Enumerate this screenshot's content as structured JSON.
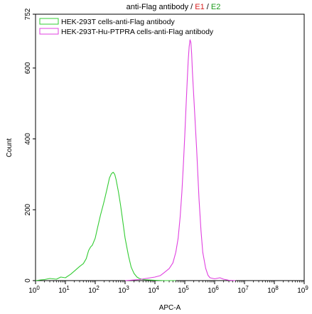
{
  "title": {
    "prefix": "anti-Flag antibody",
    "sep1": " / ",
    "e1": "E1",
    "sep2": " / ",
    "e2": "E2",
    "e1_color": "#d81e1e",
    "e2_color": "#1a9a1a"
  },
  "chart_data": {
    "type": "line",
    "xlabel": "APC-A",
    "ylabel": "Count",
    "x_scale": "log",
    "xlim": [
      1,
      1000000000
    ],
    "ylim": [
      0,
      752
    ],
    "yticks": [
      0,
      200,
      400,
      600,
      752
    ],
    "xticks": [
      {
        "value": 1,
        "base": "10",
        "exp": "0"
      },
      {
        "value": 10,
        "base": "10",
        "exp": "1"
      },
      {
        "value": 100,
        "base": "10",
        "exp": "2"
      },
      {
        "value": 1000,
        "base": "10",
        "exp": "3"
      },
      {
        "value": 10000,
        "base": "10",
        "exp": "4"
      },
      {
        "value": 100000,
        "base": "10",
        "exp": "5"
      },
      {
        "value": 1000000,
        "base": "10",
        "exp": "6"
      },
      {
        "value": 10000000,
        "base": "10",
        "exp": "7"
      },
      {
        "value": 100000000,
        "base": "10",
        "exp": "8"
      },
      {
        "value": 1000000000,
        "base": "10",
        "exp": "9"
      }
    ],
    "legend_position": "top-left",
    "series": [
      {
        "name": "HEK-293T cells-anti-Flag antibody",
        "color": "#33cc33",
        "x": [
          1,
          1.5,
          2,
          3,
          5,
          7,
          10,
          15,
          20,
          30,
          40,
          50,
          60,
          70,
          80,
          100,
          120,
          150,
          180,
          200,
          250,
          300,
          350,
          400,
          450,
          500,
          600,
          700,
          800,
          1000,
          1300,
          1600,
          2000,
          2500,
          3000,
          4000,
          6000,
          10000,
          20000,
          50000
        ],
        "y": [
          0,
          2,
          3,
          6,
          4,
          10,
          8,
          18,
          27,
          40,
          48,
          62,
          85,
          95,
          100,
          120,
          150,
          185,
          210,
          225,
          260,
          290,
          302,
          306,
          300,
          285,
          250,
          215,
          180,
          120,
          70,
          38,
          20,
          10,
          6,
          3,
          2,
          1,
          0,
          0
        ]
      },
      {
        "name": "HEK-293T-Hu-PTPRA cells-anti-Flag antibody",
        "color": "#e040e0",
        "x": [
          1000,
          3000,
          5000,
          10000,
          15000,
          20000,
          30000,
          40000,
          50000,
          60000,
          70000,
          80000,
          90000,
          100000,
          110000,
          120000,
          130000,
          140000,
          150000,
          160000,
          170000,
          180000,
          200000,
          250000,
          300000,
          350000,
          400000,
          500000,
          600000,
          700000,
          1000000,
          1500000,
          2000000,
          3000000,
          5000000
        ],
        "y": [
          0,
          3,
          6,
          10,
          14,
          22,
          34,
          50,
          80,
          120,
          180,
          250,
          330,
          410,
          490,
          560,
          620,
          660,
          680,
          672,
          640,
          590,
          520,
          370,
          230,
          140,
          80,
          35,
          15,
          8,
          5,
          8,
          4,
          1,
          0
        ]
      }
    ]
  }
}
